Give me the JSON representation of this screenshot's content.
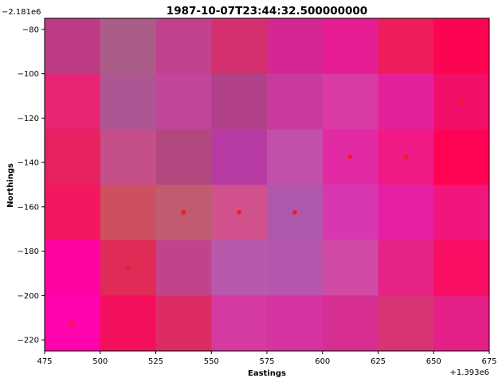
{
  "chart_data": {
    "type": "heatmap",
    "title": "1987-10-07T23:44:32.500000000",
    "xlabel": "Eastings",
    "ylabel": "Northings",
    "x_offset_label": "+1.393e6",
    "y_offset_label": "−2.181e6",
    "xlim": [
      475,
      675
    ],
    "ylim": [
      -225,
      -75
    ],
    "x_ticks": [
      475,
      500,
      525,
      550,
      575,
      600,
      625,
      650,
      675
    ],
    "y_ticks": [
      -80,
      -100,
      -120,
      -140,
      -160,
      -180,
      -200,
      -220
    ],
    "x_tick_labels": [
      "475",
      "500",
      "525",
      "550",
      "575",
      "600",
      "625",
      "650",
      "675"
    ],
    "y_tick_labels": [
      "−80",
      "−100",
      "−120",
      "−140",
      "−160",
      "−180",
      "−200",
      "−220"
    ],
    "grid": false,
    "cell_size": 25,
    "x_edges": [
      475,
      500,
      525,
      550,
      575,
      600,
      625,
      650,
      675
    ],
    "y_edges": [
      -75,
      -100,
      -125,
      -150,
      -175,
      -200,
      -225
    ],
    "cell_colors": [
      [
        "#bd3b85",
        "#ab5d88",
        "#c1418f",
        "#d43070",
        "#d42793",
        "#e61c92",
        "#ee1c5a",
        "#fc0452"
      ],
      [
        "#e82574",
        "#ae5693",
        "#c3459a",
        "#b14188",
        "#c93a9e",
        "#d93ba3",
        "#e5219a",
        "#f20f69"
      ],
      [
        "#e72260",
        "#c44f89",
        "#b2487f",
        "#b83ba4",
        "#c050a8",
        "#e32aa5",
        "#ef1a85",
        "#ff0455"
      ],
      [
        "#f51660",
        "#cc5060",
        "#c05c6f",
        "#d0518c",
        "#ae59ab",
        "#d936b1",
        "#e71fa3",
        "#f2157c"
      ],
      [
        "#ff03a3",
        "#df2b56",
        "#c1438c",
        "#b85aac",
        "#b756ad",
        "#d14aa6",
        "#e72287",
        "#f80f63"
      ],
      [
        "#ff03ad",
        "#f40f5c",
        "#dd2c64",
        "#d43a9f",
        "#d533a2",
        "#d72e91",
        "#d63474",
        "#e41f88"
      ]
    ],
    "points": [
      {
        "x": 662.5,
        "y": -112.5
      },
      {
        "x": 612.5,
        "y": -137.5
      },
      {
        "x": 637.5,
        "y": -137.5
      },
      {
        "x": 537.5,
        "y": -162.5
      },
      {
        "x": 562.5,
        "y": -162.5
      },
      {
        "x": 587.5,
        "y": -162.5
      },
      {
        "x": 512.5,
        "y": -187.5
      },
      {
        "x": 487.5,
        "y": -212.5
      }
    ],
    "point_color": "#f01b2e"
  }
}
